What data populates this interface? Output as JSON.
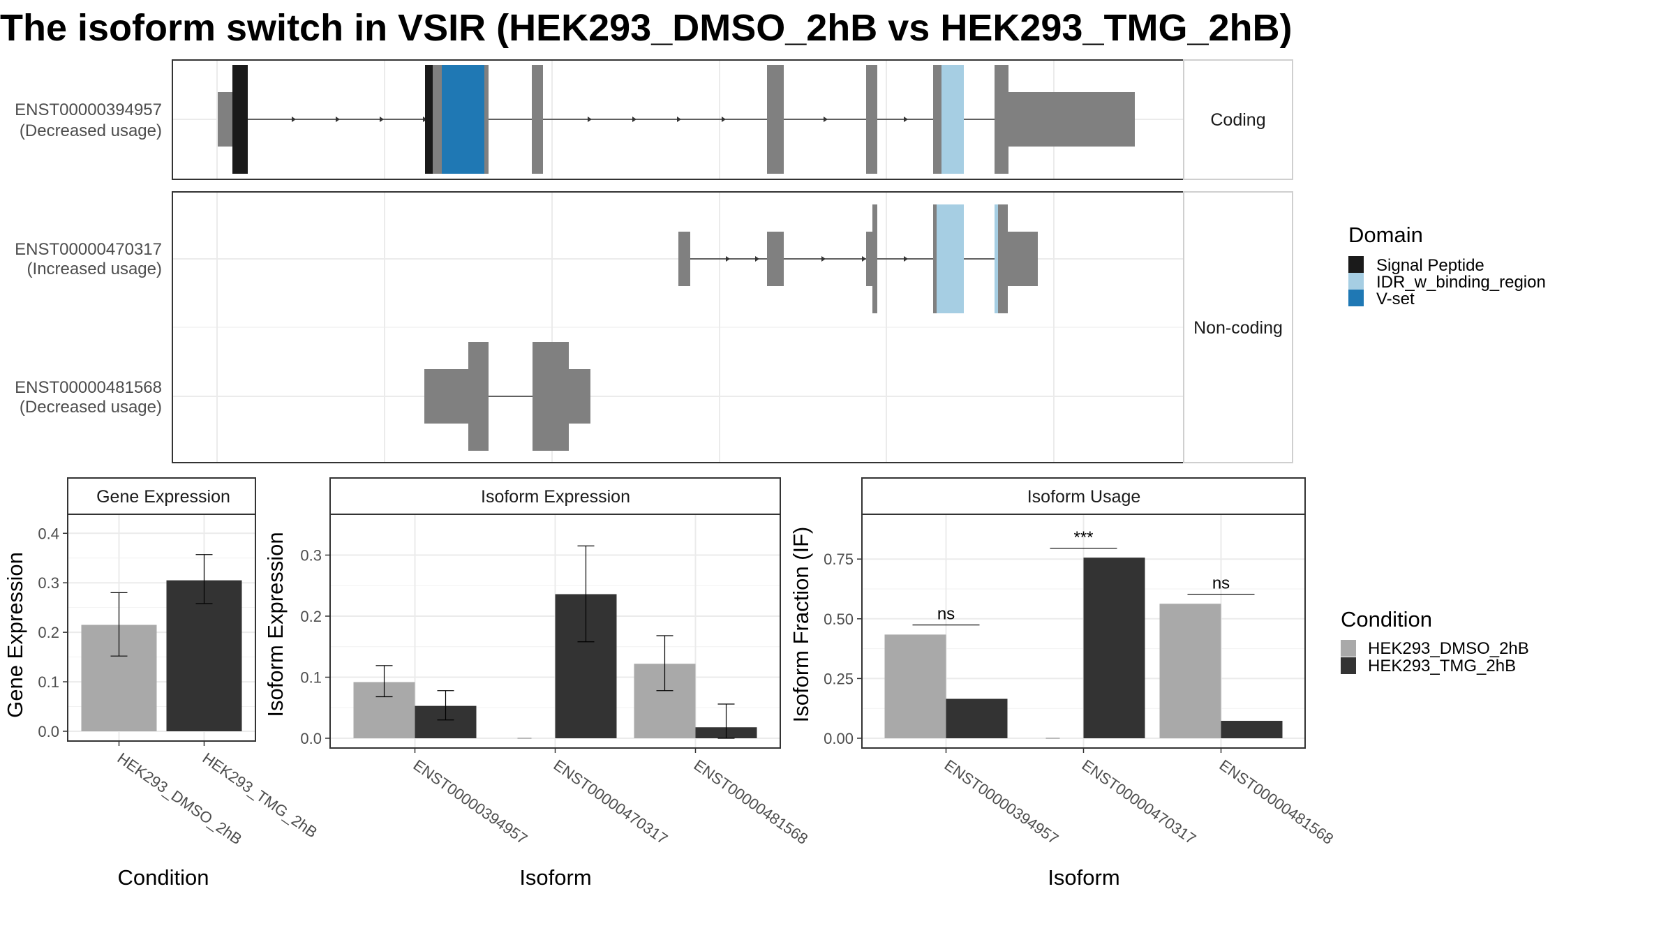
{
  "title": "The isoform switch in VSIR (HEK293_DMSO_2hB vs HEK293_TMG_2hB)",
  "colors": {
    "exon": "#808080",
    "signal_peptide": "#1a1a1a",
    "idr": "#a6cee3",
    "vset": "#1f78b4",
    "dmso": "#a9a9a9",
    "tmg": "#333333"
  },
  "structure": {
    "facets": [
      {
        "label": "Coding",
        "transcripts": [
          {
            "id": "ENST00000394957",
            "usage": "(Decreased usage)"
          }
        ]
      },
      {
        "label": "Non-coding",
        "transcripts": [
          {
            "id": "ENST00000470317",
            "usage": "(Increased usage)"
          },
          {
            "id": "ENST00000481568",
            "usage": "(Decreased usage)"
          }
        ]
      }
    ]
  },
  "legend_domain": {
    "title": "Domain",
    "items": [
      {
        "label": "Signal Peptide",
        "color": "#1a1a1a"
      },
      {
        "label": "IDR_w_binding_region",
        "color": "#a6cee3"
      },
      {
        "label": "V-set",
        "color": "#1f78b4"
      }
    ]
  },
  "legend_condition": {
    "title": "Condition",
    "items": [
      {
        "label": "HEK293_DMSO_2hB",
        "color": "#a9a9a9"
      },
      {
        "label": "HEK293_TMG_2hB",
        "color": "#333333"
      }
    ]
  },
  "chart_data": [
    {
      "type": "bar",
      "title": "Gene Expression",
      "xlabel": "Condition",
      "ylabel": "Gene Expression",
      "categories": [
        "HEK293_DMSO_2hB",
        "HEK293_TMG_2hB"
      ],
      "values": [
        0.215,
        0.305
      ],
      "error": [
        [
          0.152,
          0.28
        ],
        [
          0.258,
          0.357
        ]
      ],
      "ylim": [
        0,
        0.43
      ],
      "yticks": [
        0.0,
        0.1,
        0.2,
        0.3,
        0.4
      ],
      "ytick_labels": [
        "0.0",
        "0.1",
        "0.2",
        "0.3",
        "0.4"
      ]
    },
    {
      "type": "bar",
      "title": "Isoform Expression",
      "xlabel": "Isoform",
      "ylabel": "Isoform Expression",
      "categories": [
        "ENST00000394957",
        "ENST00000470317",
        "ENST00000481568"
      ],
      "series": [
        {
          "name": "HEK293_DMSO_2hB",
          "values": [
            0.092,
            0.0,
            0.122
          ],
          "error": [
            [
              0.068,
              0.119
            ],
            [
              0.0,
              0.0
            ],
            [
              0.078,
              0.168
            ]
          ]
        },
        {
          "name": "HEK293_TMG_2hB",
          "values": [
            0.053,
            0.236,
            0.018
          ],
          "error": [
            [
              0.03,
              0.078
            ],
            [
              0.158,
              0.315
            ],
            [
              0.0,
              0.056
            ]
          ]
        }
      ],
      "ylim": [
        0,
        0.36
      ],
      "yticks": [
        0.0,
        0.1,
        0.2,
        0.3
      ],
      "ytick_labels": [
        "0.0",
        "0.1",
        "0.2",
        "0.3"
      ]
    },
    {
      "type": "bar",
      "title": "Isoform Usage",
      "xlabel": "Isoform",
      "ylabel": "Isoform Fraction (IF)",
      "categories": [
        "ENST00000394957",
        "ENST00000470317",
        "ENST00000481568"
      ],
      "series": [
        {
          "name": "HEK293_DMSO_2hB",
          "values": [
            0.434,
            0.0,
            0.563
          ]
        },
        {
          "name": "HEK293_TMG_2hB",
          "values": [
            0.165,
            0.756,
            0.073
          ]
        }
      ],
      "significance": [
        {
          "label": "ns",
          "y": 0.474
        },
        {
          "label": "***",
          "y": 0.795
        },
        {
          "label": "ns",
          "y": 0.603
        }
      ],
      "ylim": [
        0,
        0.92
      ],
      "yticks": [
        0.0,
        0.25,
        0.5,
        0.75
      ],
      "ytick_labels": [
        "0.00",
        "0.25",
        "0.50",
        "0.75"
      ]
    }
  ]
}
